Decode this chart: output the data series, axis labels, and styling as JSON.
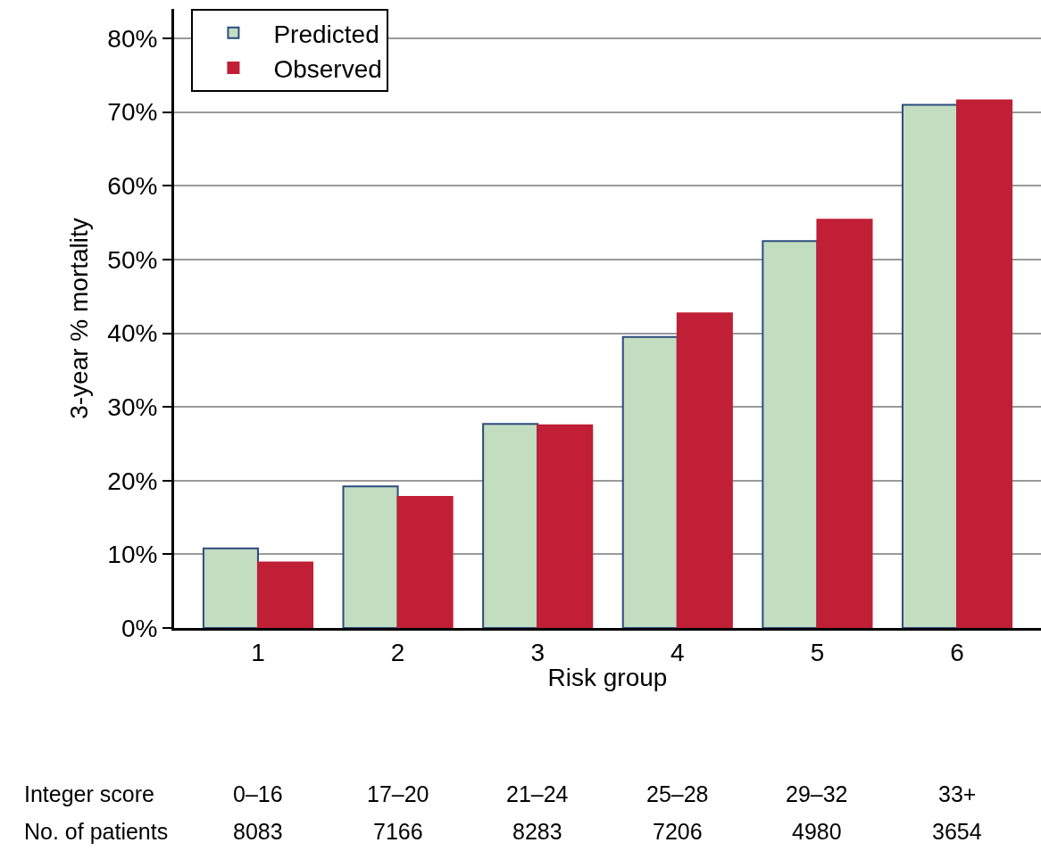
{
  "chart_data": {
    "type": "bar",
    "xlabel": "Risk group",
    "ylabel": "3-year % mortality",
    "categories": [
      "1",
      "2",
      "3",
      "4",
      "5",
      "6"
    ],
    "series": [
      {
        "name": "Predicted",
        "color": "#c2ddc0",
        "values": [
          10.8,
          19.2,
          27.7,
          39.5,
          52.5,
          71.0
        ]
      },
      {
        "name": "Observed",
        "color": "#c01f35",
        "values": [
          8.9,
          17.8,
          27.5,
          42.7,
          55.4,
          71.6
        ]
      }
    ],
    "ylim": [
      0,
      84
    ],
    "yticks": [
      {
        "value": 0,
        "label": "0%"
      },
      {
        "value": 10,
        "label": "10%"
      },
      {
        "value": 20,
        "label": "20%"
      },
      {
        "value": 30,
        "label": "30%"
      },
      {
        "value": 40,
        "label": "40%"
      },
      {
        "value": 50,
        "label": "50%"
      },
      {
        "value": 60,
        "label": "60%"
      },
      {
        "value": 70,
        "label": "70%"
      },
      {
        "value": 80,
        "label": "80%"
      }
    ],
    "grid": "y",
    "legend": "top left",
    "annotations": [
      "Integer score",
      "0–16",
      "17–20",
      "21–24",
      "25–28",
      "29–32",
      "33+",
      "No. of patients",
      "8083",
      "7166",
      "8283",
      "7206",
      "4980",
      "3654"
    ]
  }
}
